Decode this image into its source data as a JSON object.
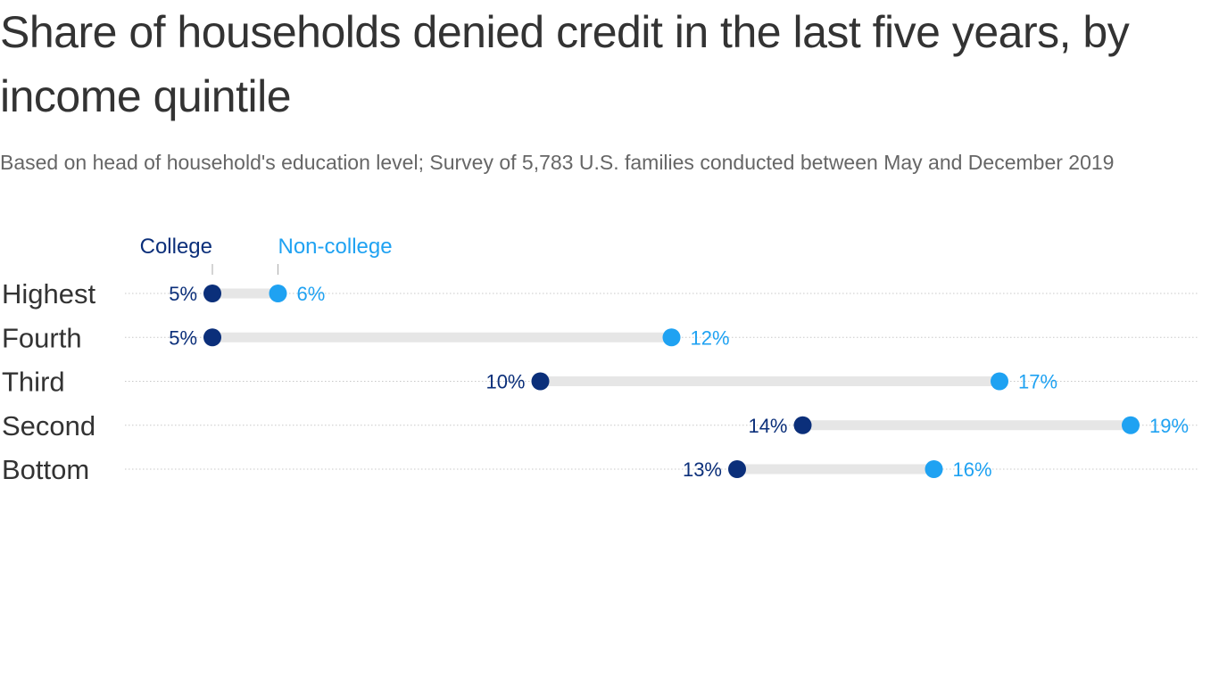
{
  "title": "Share of households denied credit in the last five years, by income quintile",
  "subtitle": "Based on head of household's education level; Survey of 5,783 U.S. families conducted between May and December 2019",
  "colors": {
    "college": "#0b2f7a",
    "non_college": "#1fa2f2",
    "connector": "#e6e6e6",
    "gridline": "#c8c8c8",
    "label": "#333333"
  },
  "chart_data": {
    "type": "dumbbell",
    "x_unit": "%",
    "xlim": [
      4,
      19.4
    ],
    "grid": false,
    "legend_placement": "top-left",
    "categories": [
      "Highest",
      "Fourth",
      "Third",
      "Second",
      "Bottom"
    ],
    "series": [
      {
        "name": "College",
        "values": [
          5,
          5,
          10,
          14,
          13
        ]
      },
      {
        "name": "Non-college",
        "values": [
          6,
          12,
          17,
          19,
          16
        ]
      }
    ],
    "value_labels": {
      "College": [
        "5%",
        "5%",
        "10%",
        "14%",
        "13%"
      ],
      "Non-college": [
        "6%",
        "12%",
        "17%",
        "19%",
        "16%"
      ]
    }
  }
}
